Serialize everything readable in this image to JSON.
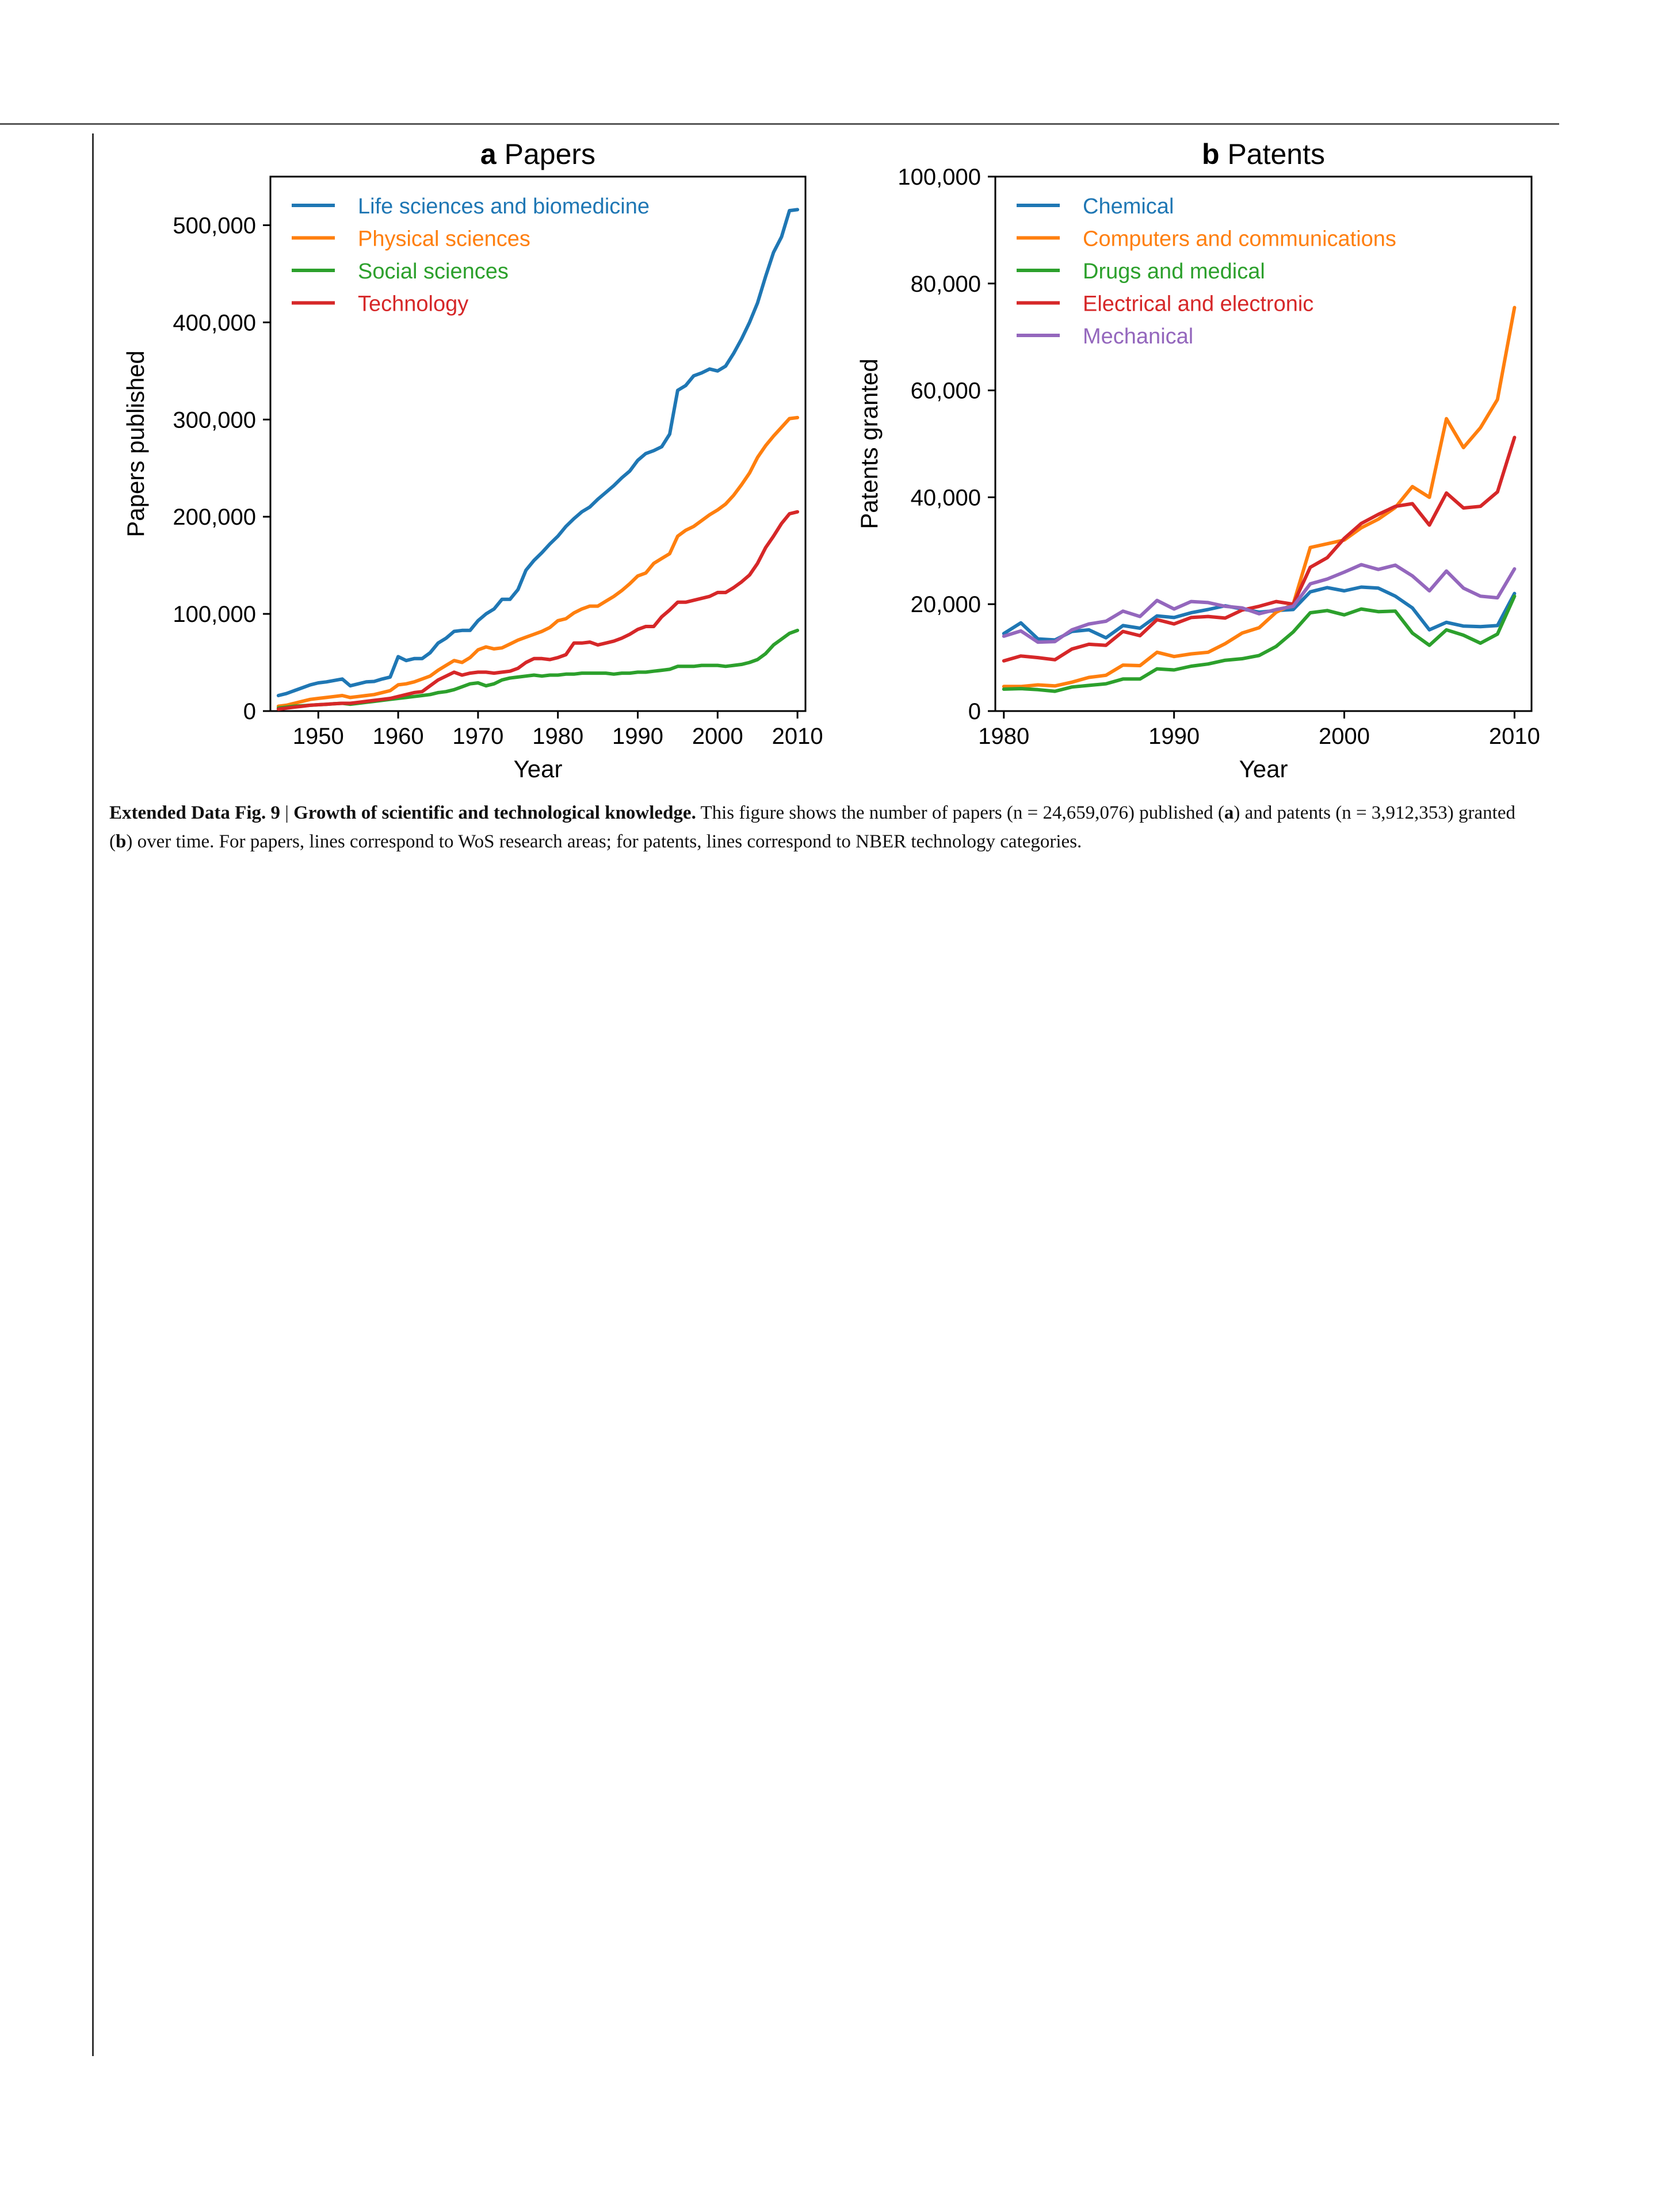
{
  "colors": {
    "blue": "#1f77b4",
    "orange": "#ff7f0e",
    "green": "#2ca02c",
    "red": "#d62728",
    "purple": "#9467bd"
  },
  "caption": {
    "figure_label": "Extended Data Fig. 9",
    "separator": " | ",
    "heading": "Growth of scientific and technological knowledge.",
    "text_1": " This figure shows the number of papers (n = 24,659,076) published (",
    "panel_a": "a",
    "text_2": ") and patents (n = 3,912,353) granted (",
    "panel_b": "b",
    "text_3": ") over time. For papers, lines correspond to WoS research areas; for patents, lines correspond to NBER technology categories."
  },
  "chart_data": [
    {
      "type": "line",
      "panel": "a",
      "title": "Papers",
      "xlabel": "Year",
      "ylabel": "Papers published",
      "xlim": [
        1944,
        2011
      ],
      "ylim": [
        0,
        550000
      ],
      "xticks": [
        1950,
        1960,
        1970,
        1980,
        1990,
        2000,
        2010
      ],
      "yticks": [
        0,
        100000,
        200000,
        300000,
        400000,
        500000
      ],
      "ytick_labels": [
        "0",
        "100,000",
        "200,000",
        "300,000",
        "400,000",
        "500,000"
      ],
      "legend_position": "top-left",
      "grid": false,
      "x": [
        1945,
        1946,
        1947,
        1948,
        1949,
        1950,
        1951,
        1952,
        1953,
        1954,
        1955,
        1956,
        1957,
        1958,
        1959,
        1960,
        1961,
        1962,
        1963,
        1964,
        1965,
        1966,
        1967,
        1968,
        1969,
        1970,
        1971,
        1972,
        1973,
        1974,
        1975,
        1976,
        1977,
        1978,
        1979,
        1980,
        1981,
        1982,
        1983,
        1984,
        1985,
        1986,
        1987,
        1988,
        1989,
        1990,
        1991,
        1992,
        1993,
        1994,
        1995,
        1996,
        1997,
        1998,
        1999,
        2000,
        2001,
        2002,
        2003,
        2004,
        2005,
        2006,
        2007,
        2008,
        2009,
        2010
      ],
      "series": [
        {
          "name": "Life sciences and biomedicine",
          "color": "#1f77b4",
          "values": [
            16000,
            18000,
            21000,
            24000,
            27000,
            29000,
            30000,
            31500,
            33000,
            26000,
            28000,
            30000,
            30500,
            33000,
            35000,
            56000,
            52000,
            54000,
            54000,
            60000,
            70000,
            75000,
            82000,
            83000,
            83000,
            93000,
            100000,
            105000,
            115000,
            115000,
            125000,
            145000,
            155000,
            163000,
            172000,
            180000,
            190000,
            198000,
            205000,
            210000,
            218000,
            225000,
            232000,
            240000,
            247000,
            258000,
            265000,
            268000,
            272000,
            285000,
            330000,
            335000,
            345000,
            348000,
            352000,
            350000,
            355000,
            368000,
            383000,
            400000,
            420000,
            447000,
            472000,
            488000,
            515000,
            516000
          ]
        },
        {
          "name": "Physical sciences",
          "color": "#ff7f0e",
          "values": [
            5000,
            6000,
            8000,
            10000,
            12000,
            13000,
            14000,
            15000,
            16000,
            14000,
            15000,
            16000,
            17000,
            19000,
            21000,
            27000,
            28000,
            30000,
            33000,
            36000,
            42000,
            47000,
            52000,
            50000,
            55000,
            63000,
            66000,
            64000,
            65000,
            69000,
            73000,
            76000,
            79000,
            82000,
            86000,
            93000,
            95000,
            101000,
            105000,
            108000,
            108000,
            113000,
            118000,
            124000,
            131000,
            139000,
            142000,
            152000,
            157000,
            162000,
            180000,
            186000,
            190000,
            196000,
            202000,
            207000,
            213000,
            222000,
            233000,
            245000,
            261000,
            273000,
            283000,
            292000,
            301000,
            302000
          ]
        },
        {
          "name": "Social sciences",
          "color": "#2ca02c",
          "values": [
            3000,
            4000,
            5000,
            5500,
            6000,
            6500,
            7000,
            7500,
            8000,
            7000,
            8000,
            9000,
            10000,
            11000,
            12000,
            13000,
            14000,
            15000,
            16000,
            17000,
            19000,
            20000,
            22000,
            25000,
            28000,
            29000,
            26000,
            28000,
            32000,
            34000,
            35000,
            36000,
            37000,
            36000,
            37000,
            37000,
            38000,
            38000,
            39000,
            39000,
            39000,
            39000,
            38000,
            39000,
            39000,
            40000,
            40000,
            41000,
            42000,
            43000,
            46000,
            46000,
            46000,
            47000,
            47000,
            47000,
            46000,
            47000,
            48000,
            50000,
            53000,
            59000,
            68000,
            74000,
            80000,
            83000
          ]
        },
        {
          "name": "Technology",
          "color": "#d62728",
          "values": [
            2000,
            3000,
            4000,
            5000,
            6000,
            6500,
            7000,
            7500,
            8000,
            8000,
            9000,
            10000,
            11000,
            12000,
            13000,
            15000,
            17000,
            19000,
            20000,
            26000,
            32000,
            36000,
            40000,
            37000,
            39000,
            40000,
            40000,
            39000,
            40000,
            41000,
            44000,
            50000,
            54000,
            54000,
            53000,
            55000,
            58000,
            70000,
            70000,
            71000,
            68000,
            70000,
            72000,
            75000,
            79000,
            84000,
            87000,
            87000,
            97000,
            104000,
            112000,
            112000,
            114000,
            116000,
            118000,
            122000,
            122000,
            127000,
            133000,
            140000,
            152000,
            168000,
            180000,
            193000,
            203000,
            205000
          ]
        }
      ]
    },
    {
      "type": "line",
      "panel": "b",
      "title": "Patents",
      "xlabel": "Year",
      "ylabel": "Patents granted",
      "xlim": [
        1979.5,
        2011
      ],
      "ylim": [
        0,
        100000
      ],
      "xticks": [
        1980,
        1990,
        2000,
        2010
      ],
      "yticks": [
        0,
        20000,
        40000,
        60000,
        80000,
        100000
      ],
      "ytick_labels": [
        "0",
        "20,000",
        "40,000",
        "60,000",
        "80,000",
        "100,000"
      ],
      "legend_position": "top-left",
      "grid": false,
      "x": [
        1980,
        1981,
        1982,
        1983,
        1984,
        1985,
        1986,
        1987,
        1988,
        1989,
        1990,
        1991,
        1992,
        1993,
        1994,
        1995,
        1996,
        1997,
        1998,
        1999,
        2000,
        2001,
        2002,
        2003,
        2004,
        2005,
        2006,
        2007,
        2008,
        2009,
        2010
      ],
      "series": [
        {
          "name": "Chemical",
          "color": "#1f77b4",
          "values": [
            14500,
            16500,
            13500,
            13300,
            14900,
            15200,
            13700,
            16000,
            15500,
            17800,
            17500,
            18400,
            19000,
            19700,
            19100,
            18500,
            18800,
            19000,
            22300,
            23100,
            22500,
            23200,
            23000,
            21500,
            19300,
            15200,
            16600,
            15900,
            15800,
            16000,
            22000
          ]
        },
        {
          "name": "Computers and communications",
          "color": "#ff7f0e",
          "values": [
            4600,
            4600,
            4900,
            4700,
            5400,
            6300,
            6700,
            8600,
            8500,
            11000,
            10200,
            10700,
            11000,
            12600,
            14600,
            15600,
            18500,
            20000,
            30600,
            31300,
            32000,
            34300,
            35900,
            38100,
            42000,
            40000,
            54700,
            49300,
            53000,
            58300,
            75500
          ]
        },
        {
          "name": "Drugs and medical",
          "color": "#2ca02c",
          "values": [
            4100,
            4200,
            4000,
            3700,
            4500,
            4800,
            5100,
            6000,
            6000,
            7900,
            7700,
            8400,
            8800,
            9500,
            9800,
            10400,
            12100,
            14800,
            18400,
            18800,
            18000,
            19100,
            18600,
            18700,
            14600,
            12300,
            15200,
            14200,
            12700,
            14400,
            21500
          ]
        },
        {
          "name": "Electrical and electronic",
          "color": "#d62728",
          "values": [
            9400,
            10300,
            10000,
            9600,
            11600,
            12500,
            12300,
            14900,
            14100,
            17100,
            16300,
            17500,
            17700,
            17400,
            18900,
            19600,
            20500,
            20000,
            26900,
            28700,
            32300,
            35100,
            36800,
            38300,
            38800,
            34800,
            40800,
            38000,
            38300,
            41000,
            51200
          ]
        },
        {
          "name": "Mechanical",
          "color": "#9467bd",
          "values": [
            14000,
            15000,
            12900,
            13000,
            15200,
            16300,
            16800,
            18700,
            17700,
            20700,
            19100,
            20500,
            20300,
            19600,
            19300,
            18200,
            19000,
            19600,
            23800,
            24700,
            26000,
            27400,
            26500,
            27300,
            25300,
            22500,
            26200,
            23000,
            21500,
            21200,
            26600
          ]
        }
      ]
    }
  ]
}
